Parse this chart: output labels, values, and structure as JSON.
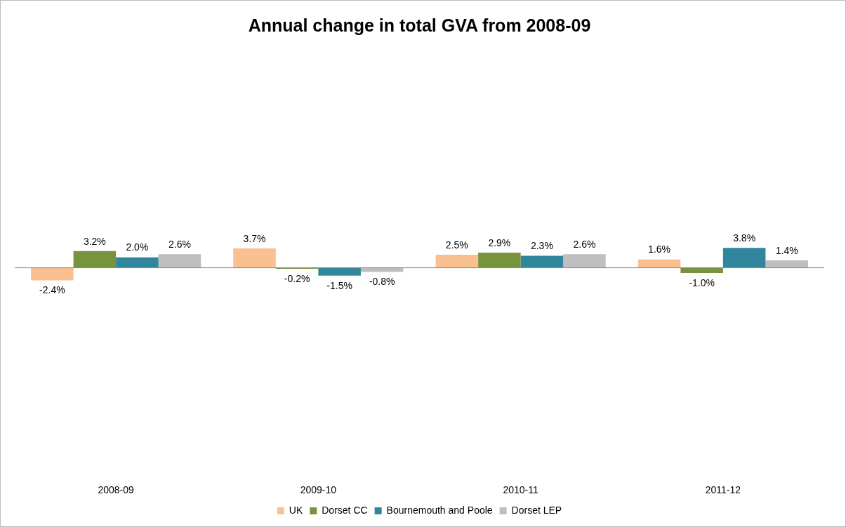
{
  "chart_data": {
    "type": "bar",
    "title": "Annual change in total GVA from 2008-09",
    "categories": [
      "2008-09",
      "2009-10",
      "2010-11",
      "2011-12"
    ],
    "series": [
      {
        "name": "UK",
        "color": "#fac090",
        "values": [
          -2.4,
          3.7,
          2.5,
          1.6
        ],
        "value_labels": [
          "-2.4%",
          "3.7%",
          "2.5%",
          "1.6%"
        ]
      },
      {
        "name": "Dorset CC",
        "color": "#77933c",
        "values": [
          3.2,
          -0.2,
          2.9,
          -1.0
        ],
        "value_labels": [
          "3.2%",
          "-0.2%",
          "2.9%",
          "-1.0%"
        ]
      },
      {
        "name": "Bournemouth and Poole",
        "color": "#31859c",
        "values": [
          2.0,
          -1.5,
          2.3,
          3.8
        ],
        "value_labels": [
          "2.0%",
          "-1.5%",
          "2.3%",
          "3.8%"
        ]
      },
      {
        "name": "Dorset LEP",
        "color": "#bfbfbf",
        "values": [
          2.6,
          -0.8,
          2.6,
          1.4
        ],
        "value_labels": [
          "2.6%",
          "-0.8%",
          "2.6%",
          "1.4%"
        ]
      }
    ],
    "grid": false,
    "legend": "bottom",
    "tick_labels": "x"
  }
}
